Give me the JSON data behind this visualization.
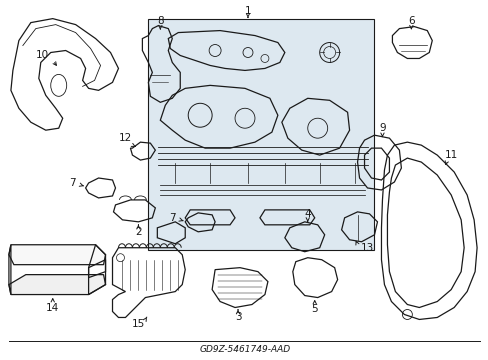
{
  "bg_color": "#ffffff",
  "line_color": "#1a1a1a",
  "shade_color": "#dde8f0",
  "fig_width": 4.89,
  "fig_height": 3.6,
  "dpi": 100,
  "title": "GD9Z-5461749-AAD"
}
